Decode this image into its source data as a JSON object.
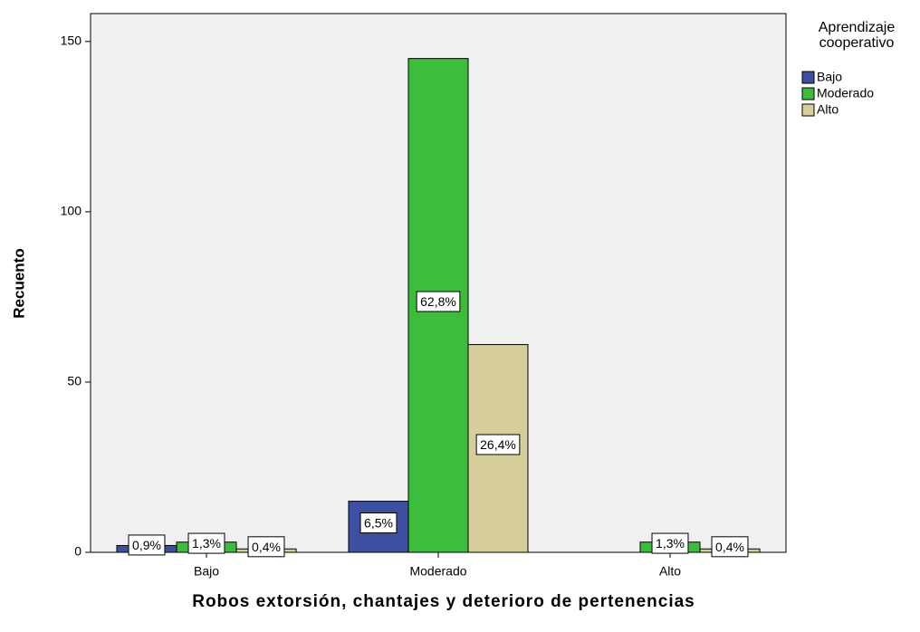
{
  "chart_data": {
    "type": "bar",
    "categories": [
      "Bajo",
      "Moderado",
      "Alto"
    ],
    "series": [
      {
        "name": "Bajo",
        "color": "#3d4fa1",
        "values": [
          2,
          15,
          0
        ],
        "value_labels": [
          "0,9%",
          "6,5%",
          null
        ]
      },
      {
        "name": "Moderado",
        "color": "#3cbd3c",
        "values": [
          3,
          145,
          3
        ],
        "value_labels": [
          "1,3%",
          "62,8%",
          "1,3%"
        ]
      },
      {
        "name": "Alto",
        "color": "#d6cf9b",
        "values": [
          1,
          61,
          1
        ],
        "value_labels": [
          "0,4%",
          "26,4%",
          "0,4%"
        ]
      }
    ],
    "ylim": [
      0,
      158.2
    ],
    "yticks": [
      0,
      50,
      100,
      150
    ],
    "y_label": "Recuento",
    "x_label": "Robos extorsión, chantajes y deterioro de pertenencias",
    "legend_title": "Aprendizaje cooperativo",
    "legend_position": "upper right outside",
    "grid": false
  }
}
